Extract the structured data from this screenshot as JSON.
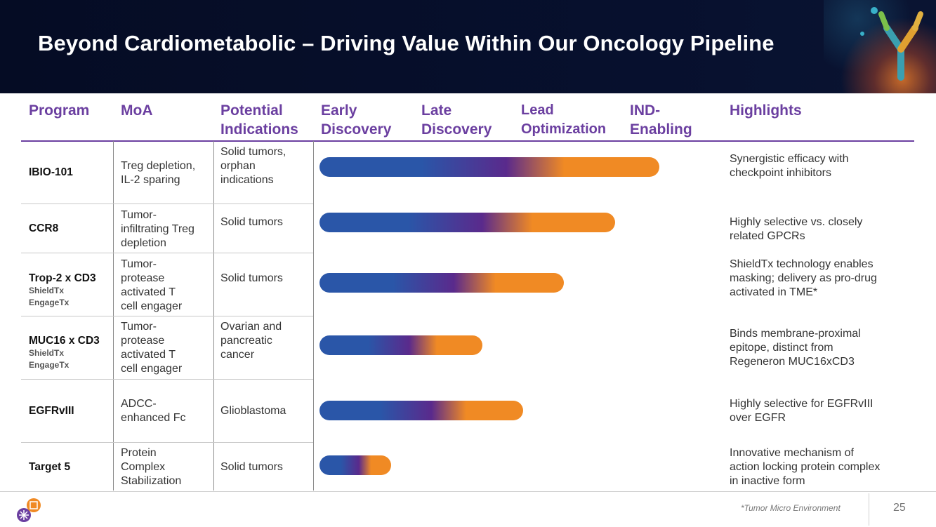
{
  "title": "Beyond Cardiometabolic – Driving Value Within Our Oncology Pipeline",
  "columns": {
    "program": "Program",
    "moa": "MoA",
    "indications": [
      "Potential",
      "Indications"
    ],
    "early": [
      "Early",
      "Discovery"
    ],
    "late": [
      "Late",
      "Discovery"
    ],
    "lead": [
      "Lead",
      "Optimization"
    ],
    "ind": [
      "IND-",
      "Enabling"
    ],
    "highlights": "Highlights"
  },
  "colors": {
    "accent": "#6b3fa0",
    "bar_blue": "#2a56a8",
    "bar_purple": "#5a2a8c",
    "bar_orange": "#f08a24"
  },
  "rows": [
    {
      "program": "IBIO-101",
      "sub": [],
      "moa": [
        "Treg depletion,",
        "IL-2 sparing"
      ],
      "indications": [
        "Solid tumors,",
        "orphan",
        "indications"
      ],
      "progress_pct": 100,
      "highlights": [
        "Synergistic efficacy with",
        "checkpoint inhibitors"
      ]
    },
    {
      "program": "CCR8",
      "sub": [],
      "moa": [
        "Tumor-",
        "infiltrating Treg",
        "depletion"
      ],
      "indications": [
        "Solid tumors"
      ],
      "progress_pct": 87,
      "highlights": [
        "Highly selective vs. closely",
        "related GPCRs"
      ]
    },
    {
      "program": "Trop-2 x CD3",
      "sub": [
        "ShieldTx",
        "EngageTx"
      ],
      "moa": [
        "Tumor-",
        "protease",
        "activated T",
        "cell engager"
      ],
      "indications": [
        "Solid tumors"
      ],
      "progress_pct": 72,
      "highlights": [
        "ShieldTx technology enables",
        "masking; delivery as pro-drug",
        "activated in TME*"
      ]
    },
    {
      "program": "MUC16 x CD3",
      "sub": [
        "ShieldTx",
        "EngageTx"
      ],
      "moa": [
        "Tumor-",
        "protease",
        "activated T",
        "cell engager"
      ],
      "indications": [
        "Ovarian and",
        "pancreatic",
        "cancer"
      ],
      "progress_pct": 48,
      "highlights": [
        "Binds membrane-proximal",
        "epitope, distinct from",
        "Regeneron MUC16xCD3"
      ]
    },
    {
      "program": "EGFRvIII",
      "sub": [],
      "moa": [
        "ADCC-",
        "enhanced Fc"
      ],
      "indications": [
        "Glioblastoma"
      ],
      "progress_pct": 60,
      "highlights": [
        "Highly selective for EGFRvIII",
        "over EGFR"
      ]
    },
    {
      "program": "Target 5",
      "sub": [],
      "moa": [
        "Protein",
        "Complex",
        "Stabilization"
      ],
      "indications": [
        "Solid tumors"
      ],
      "progress_pct": 21,
      "highlights": [
        "Innovative mechanism of",
        "action locking protein complex",
        "in inactive form"
      ]
    }
  ],
  "footer": {
    "footnote": "*Tumor Micro Environment",
    "page": "25"
  }
}
